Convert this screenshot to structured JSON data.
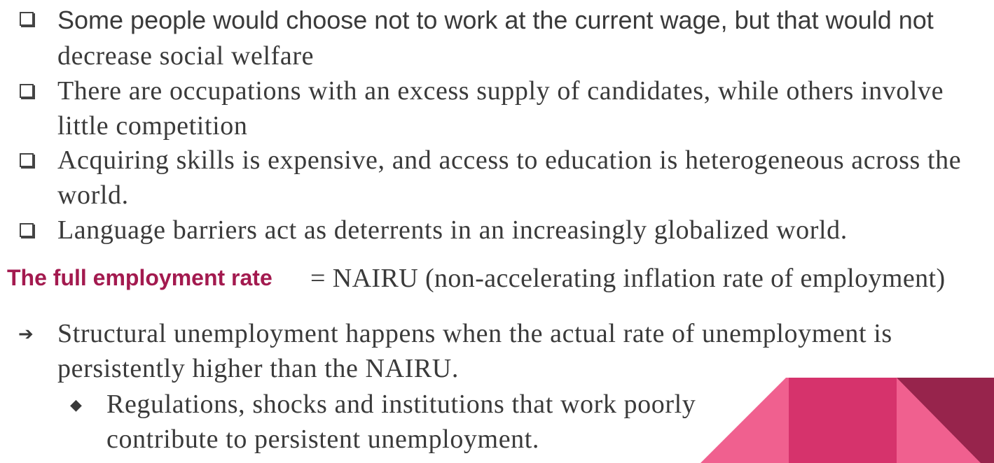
{
  "bullets": [
    {
      "lines": [
        "Some people would choose not to work at the current wage, but that would not",
        "decrease social welfare"
      ]
    },
    {
      "lines": [
        "There are occupations with an excess supply of candidates, while others involve",
        "little competition"
      ]
    },
    {
      "lines": [
        "Acquiring skills is expensive, and access to education is heterogeneous across the",
        "world."
      ]
    },
    {
      "lines": [
        "Language barriers act as deterrents in an increasingly globalized world."
      ]
    }
  ],
  "definition": {
    "term": "The full employment rate",
    "equation": "= NAIRU (non-accelerating inflation rate of employment)"
  },
  "arrow_point": {
    "icon": "right-arrow-icon",
    "lines": [
      "Structural unemployment happens when the actual rate of unemployment is",
      "persistently higher than the NAIRU."
    ]
  },
  "sub_point": {
    "icon": "diamond-bullet-icon",
    "lines": [
      "Regulations, shocks and institutions that work poorly",
      "contribute to persistent unemployment."
    ]
  },
  "colors": {
    "accent": "#a31a4f",
    "pink_light": "#f0608f",
    "pink_mid": "#d6336c",
    "maroon": "#97244c"
  }
}
